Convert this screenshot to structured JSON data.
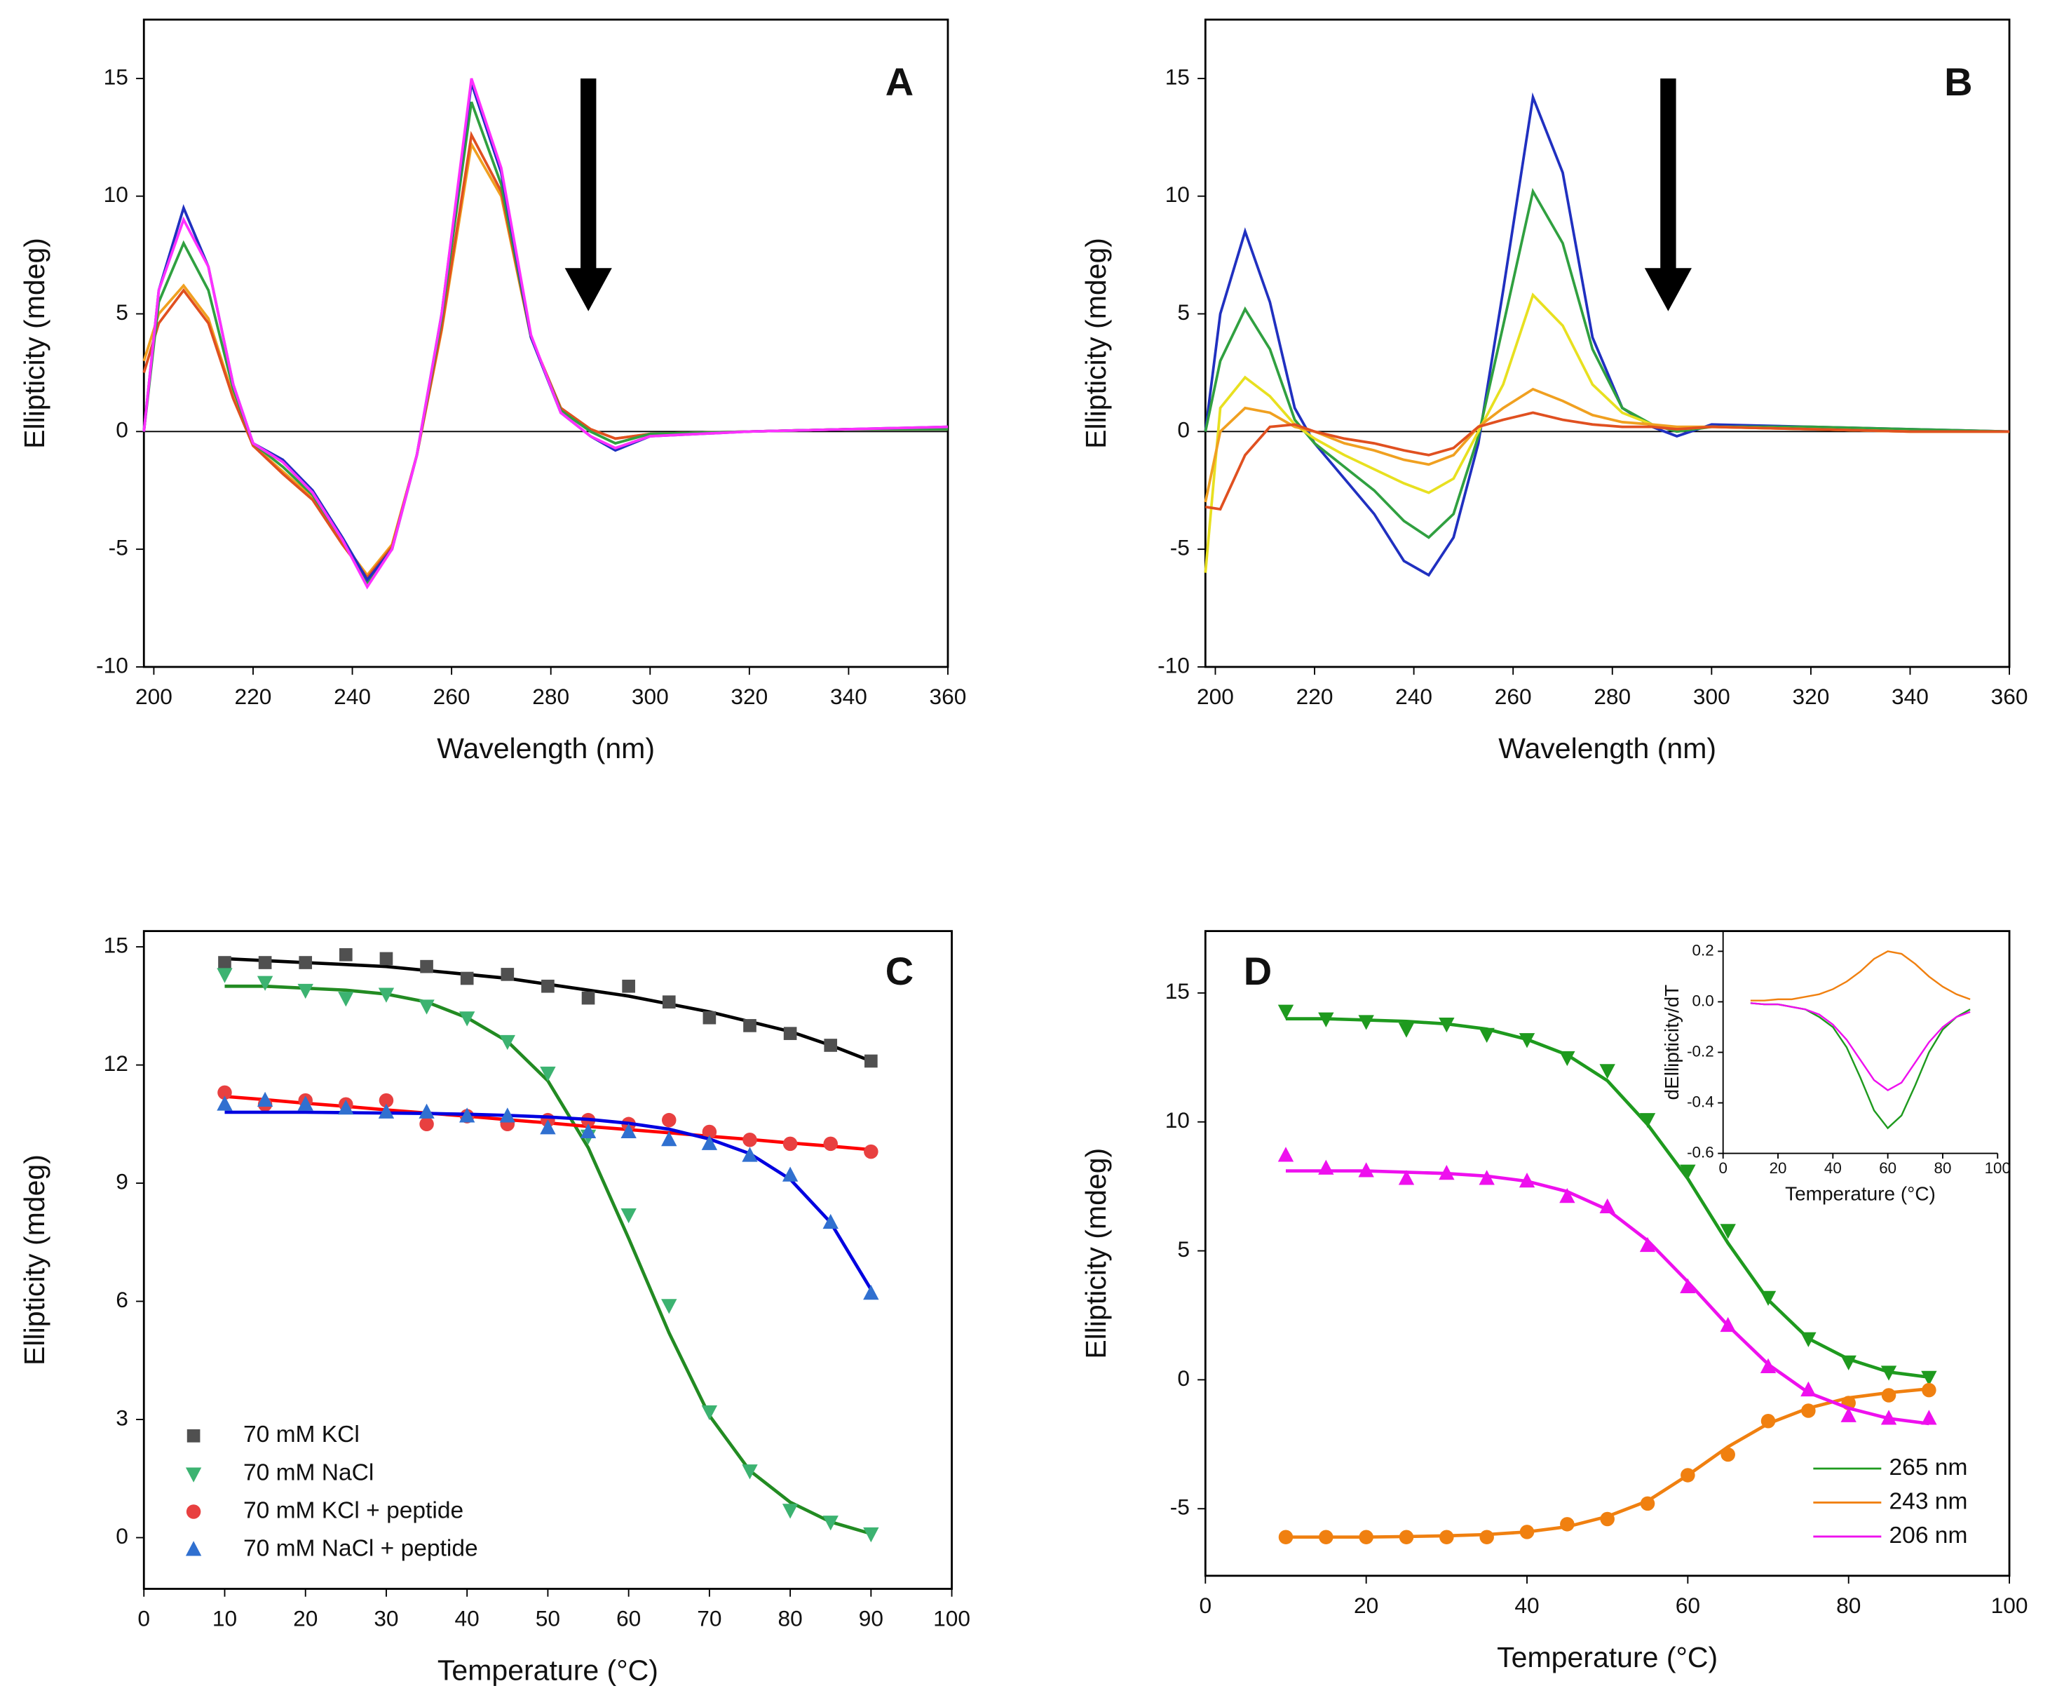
{
  "chart_data": [
    {
      "type": "line",
      "label": "A",
      "xlabel": "Wavelength (nm)",
      "ylabel": "Ellipticity (mdeg)",
      "x": [
        198,
        201,
        206,
        211,
        216,
        220,
        226,
        232,
        238,
        243,
        248,
        253,
        258,
        264,
        270,
        276,
        282,
        288,
        293,
        300,
        320,
        340,
        360
      ],
      "xlim": [
        198,
        360
      ],
      "xticks": [
        200,
        220,
        240,
        260,
        280,
        300,
        320,
        340,
        360
      ],
      "ylim": [
        -10,
        17.5
      ],
      "yticks": [
        -10,
        -5,
        0,
        5,
        10,
        15
      ],
      "zeroline": true,
      "series": [
        {
          "color": "#f0a020",
          "values": [
            3,
            5,
            6.2,
            4.8,
            1.5,
            -0.6,
            -1.7,
            -2.8,
            -4.7,
            -6.1,
            -4.8,
            -1,
            4.3,
            12.2,
            10,
            4,
            1,
            0.1,
            -0.3,
            -0.1,
            0,
            0.1,
            0.1
          ]
        },
        {
          "color": "#e05020",
          "values": [
            2.5,
            4.6,
            6,
            4.6,
            1.4,
            -0.6,
            -1.8,
            -2.9,
            -4.8,
            -6.2,
            -4.9,
            -1,
            4.4,
            12.6,
            10.2,
            4,
            1,
            0.1,
            -0.3,
            -0.1,
            0,
            0.1,
            0.1
          ]
        },
        {
          "color": "#30a040",
          "values": [
            0,
            5.5,
            8,
            6,
            1.8,
            -0.5,
            -1.5,
            -2.7,
            -4.6,
            -6.4,
            -5,
            -1,
            4.8,
            14,
            10.5,
            4,
            0.9,
            0,
            -0.5,
            -0.1,
            0,
            0.1,
            0.1
          ]
        },
        {
          "color": "#2030c0",
          "values": [
            0,
            6,
            9.5,
            7,
            2,
            -0.5,
            -1.2,
            -2.5,
            -4.5,
            -6.3,
            -5,
            -1,
            5,
            14.8,
            11,
            4,
            0.8,
            -0.2,
            -0.8,
            -0.2,
            0,
            0.1,
            0.2
          ]
        },
        {
          "color": "#ff30ff",
          "values": [
            0,
            6,
            9,
            7,
            2,
            -0.5,
            -1.3,
            -2.6,
            -4.6,
            -6.6,
            -5,
            -1,
            5,
            15,
            11.2,
            4.1,
            0.8,
            -0.2,
            -0.7,
            -0.2,
            0,
            0.1,
            0.2
          ]
        }
      ]
    },
    {
      "type": "line",
      "label": "B",
      "xlabel": "Wavelength (nm)",
      "ylabel": "Ellipticity (mdeg)",
      "x": [
        198,
        201,
        206,
        211,
        216,
        220,
        226,
        232,
        238,
        243,
        248,
        253,
        258,
        264,
        270,
        276,
        282,
        288,
        293,
        300,
        320,
        340,
        360
      ],
      "xlim": [
        198,
        360
      ],
      "xticks": [
        200,
        220,
        240,
        260,
        280,
        300,
        320,
        340,
        360
      ],
      "ylim": [
        -10,
        17.5
      ],
      "yticks": [
        -10,
        -5,
        0,
        5,
        10,
        15
      ],
      "zeroline": true,
      "series": [
        {
          "color": "#2030c0",
          "values": [
            0,
            5,
            8.5,
            5.5,
            1,
            -0.5,
            -2,
            -3.5,
            -5.5,
            -6.1,
            -4.5,
            -0.5,
            6,
            14.2,
            11,
            4,
            1,
            0.2,
            -0.2,
            0.3,
            0.2,
            0.1,
            0
          ]
        },
        {
          "color": "#30a040",
          "values": [
            0,
            3,
            5.2,
            3.5,
            0.5,
            -0.5,
            -1.5,
            -2.5,
            -3.8,
            -4.5,
            -3.5,
            -0.2,
            4.5,
            10.2,
            8,
            3.5,
            1,
            0.3,
            0,
            0.2,
            0.2,
            0.1,
            0
          ]
        },
        {
          "color": "#e8e020",
          "values": [
            -6,
            1,
            2.3,
            1.5,
            0.3,
            -0.3,
            -1,
            -1.6,
            -2.2,
            -2.6,
            -2,
            0,
            2,
            5.8,
            4.5,
            2,
            0.8,
            0.3,
            0.1,
            0.2,
            0.1,
            0,
            0
          ]
        },
        {
          "color": "#f0a020",
          "values": [
            -3,
            0,
            1,
            0.8,
            0.2,
            0,
            -0.5,
            -0.8,
            -1.2,
            -1.4,
            -1,
            0.2,
            1,
            1.8,
            1.3,
            0.7,
            0.4,
            0.3,
            0.2,
            0.2,
            0.1,
            0,
            0
          ]
        },
        {
          "color": "#e05020",
          "values": [
            -3.2,
            -3.3,
            -1,
            0.2,
            0.3,
            0,
            -0.3,
            -0.5,
            -0.8,
            -1,
            -0.7,
            0.2,
            0.5,
            0.8,
            0.5,
            0.3,
            0.2,
            0.2,
            0.1,
            0.2,
            0.1,
            0,
            0
          ]
        }
      ]
    },
    {
      "type": "scatter",
      "label": "C",
      "xlabel": "Temperature (°C)",
      "ylabel": "Ellipticity (mdeg)",
      "x": [
        10,
        15,
        20,
        25,
        30,
        35,
        40,
        45,
        50,
        55,
        60,
        65,
        70,
        75,
        80,
        85,
        90
      ],
      "xlim": [
        0,
        100
      ],
      "xticks": [
        0,
        10,
        20,
        30,
        40,
        50,
        60,
        70,
        80,
        90,
        100
      ],
      "ylim": [
        -1.3,
        15.4
      ],
      "yticks": [
        0,
        3,
        6,
        9,
        12,
        15
      ],
      "legend": "lower left",
      "legend_symbol": "marker",
      "series": [
        {
          "name": "70 mM KCl",
          "color": "#505050",
          "fit_color": "#000000",
          "marker": "square",
          "values": [
            14.6,
            14.6,
            14.6,
            14.8,
            14.7,
            14.5,
            14.2,
            14.3,
            14.0,
            13.7,
            14.0,
            13.6,
            13.2,
            13.0,
            12.8,
            12.5,
            12.1
          ],
          "fit": [
            14.7,
            14.65,
            14.6,
            14.55,
            14.5,
            14.4,
            14.3,
            14.2,
            14.05,
            13.9,
            13.75,
            13.55,
            13.35,
            13.1,
            12.85,
            12.5,
            12.1
          ]
        },
        {
          "name": "70 mM NaCl",
          "color": "#3cb371",
          "fit_color": "#228b22",
          "marker": "triangle-down",
          "values": [
            14.3,
            14.1,
            13.9,
            13.7,
            13.8,
            13.5,
            13.2,
            12.6,
            11.8,
            10.2,
            8.2,
            5.9,
            3.2,
            1.7,
            0.7,
            0.4,
            0.1
          ],
          "fit": [
            14.0,
            14.0,
            13.95,
            13.9,
            13.8,
            13.6,
            13.2,
            12.6,
            11.6,
            9.9,
            7.6,
            5.2,
            3.1,
            1.7,
            0.9,
            0.4,
            0.1
          ]
        },
        {
          "name": "70 mM KCl + peptide",
          "color": "#e84040",
          "fit_color": "#ff0000",
          "marker": "circle",
          "values": [
            11.3,
            11.0,
            11.1,
            11.0,
            11.1,
            10.5,
            10.7,
            10.5,
            10.6,
            10.6,
            10.5,
            10.6,
            10.3,
            10.1,
            10.0,
            10.0,
            9.8
          ],
          "fit": [
            11.2,
            11.12,
            11.03,
            10.95,
            10.86,
            10.78,
            10.7,
            10.61,
            10.53,
            10.44,
            10.36,
            10.28,
            10.19,
            10.11,
            10.02,
            9.94,
            9.85
          ]
        },
        {
          "name": "70 mM NaCl + peptide",
          "color": "#3070d0",
          "fit_color": "#0000e0",
          "marker": "triangle-up",
          "values": [
            11.0,
            11.1,
            11.0,
            10.9,
            10.8,
            10.8,
            10.7,
            10.7,
            10.4,
            10.3,
            10.3,
            10.1,
            10.0,
            9.7,
            9.2,
            8.0,
            6.2
          ],
          "fit": [
            10.8,
            10.8,
            10.8,
            10.79,
            10.78,
            10.77,
            10.75,
            10.72,
            10.68,
            10.62,
            10.52,
            10.37,
            10.12,
            9.75,
            9.1,
            8.0,
            6.3
          ]
        }
      ]
    },
    {
      "type": "scatter",
      "label": "D",
      "xlabel": "Temperature (°C)",
      "ylabel": "Ellipticity (mdeg)",
      "x": [
        10,
        15,
        20,
        25,
        30,
        35,
        40,
        45,
        50,
        55,
        60,
        65,
        70,
        75,
        80,
        85,
        90
      ],
      "xlim": [
        0,
        100
      ],
      "xticks": [
        0,
        20,
        40,
        60,
        80,
        100
      ],
      "ylim": [
        -7.6,
        17.4
      ],
      "yticks": [
        -5,
        0,
        5,
        10,
        15
      ],
      "legend": "lower right",
      "legend_symbol": "line",
      "series": [
        {
          "name": "265 nm",
          "color": "#1e9a1e",
          "fit_color": "#1e9a1e",
          "marker": "triangle-down",
          "values": [
            14.3,
            14.0,
            13.9,
            13.6,
            13.8,
            13.4,
            13.2,
            12.5,
            12.0,
            10.1,
            8.1,
            5.8,
            3.2,
            1.6,
            0.7,
            0.3,
            0.1
          ],
          "fit": [
            14.0,
            14.0,
            13.95,
            13.9,
            13.8,
            13.6,
            13.2,
            12.6,
            11.6,
            9.9,
            7.8,
            5.3,
            3.1,
            1.6,
            0.8,
            0.3,
            0.1
          ]
        },
        {
          "name": "243 nm",
          "color": "#f08010",
          "fit_color": "#f08010",
          "marker": "circle",
          "values": [
            -6.1,
            -6.1,
            -6.1,
            -6.1,
            -6.1,
            -6.1,
            -5.9,
            -5.6,
            -5.4,
            -4.8,
            -3.7,
            -2.9,
            -1.6,
            -1.2,
            -0.9,
            -0.6,
            -0.4
          ],
          "fit": [
            -6.1,
            -6.1,
            -6.1,
            -6.08,
            -6.05,
            -6.0,
            -5.9,
            -5.7,
            -5.3,
            -4.7,
            -3.7,
            -2.6,
            -1.7,
            -1.1,
            -0.7,
            -0.5,
            -0.35
          ]
        },
        {
          "name": "206 nm",
          "color": "#ee10ee",
          "fit_color": "#ee10ee",
          "marker": "triangle-up",
          "values": [
            8.7,
            8.2,
            8.1,
            7.8,
            8.0,
            7.8,
            7.7,
            7.1,
            6.7,
            5.2,
            3.6,
            2.1,
            0.5,
            -0.4,
            -1.4,
            -1.5,
            -1.5
          ],
          "fit": [
            8.1,
            8.1,
            8.1,
            8.05,
            8.0,
            7.9,
            7.7,
            7.3,
            6.6,
            5.4,
            3.8,
            2.1,
            0.6,
            -0.5,
            -1.1,
            -1.5,
            -1.7
          ]
        }
      ]
    },
    {
      "type": "line",
      "inset": true,
      "xlabel": "Temperature (°C)",
      "ylabel": "dEllipticity/dT",
      "x": [
        10,
        15,
        20,
        25,
        30,
        35,
        40,
        45,
        50,
        55,
        60,
        65,
        70,
        75,
        80,
        85,
        90
      ],
      "xlim": [
        0,
        100
      ],
      "xticks": [
        0,
        20,
        40,
        60,
        80,
        100
      ],
      "ylim": [
        -0.6,
        0.28
      ],
      "yticks": [
        0.2,
        {
          "value": 0,
          "label": "0.0"
        },
        -0.2,
        -0.4,
        -0.6
      ],
      "series": [
        {
          "color": "#1e9a1e",
          "values": [
            -0.005,
            -0.01,
            -0.01,
            -0.02,
            -0.03,
            -0.06,
            -0.1,
            -0.18,
            -0.3,
            -0.43,
            -0.5,
            -0.45,
            -0.33,
            -0.2,
            -0.11,
            -0.06,
            -0.03
          ]
        },
        {
          "color": "#ee10ee",
          "values": [
            -0.005,
            -0.01,
            -0.01,
            -0.02,
            -0.03,
            -0.05,
            -0.09,
            -0.15,
            -0.23,
            -0.31,
            -0.35,
            -0.32,
            -0.24,
            -0.16,
            -0.1,
            -0.06,
            -0.04
          ]
        },
        {
          "color": "#f08010",
          "values": [
            0.005,
            0.005,
            0.01,
            0.01,
            0.02,
            0.03,
            0.05,
            0.08,
            0.12,
            0.17,
            0.2,
            0.19,
            0.15,
            0.1,
            0.06,
            0.03,
            0.01
          ]
        }
      ]
    }
  ]
}
